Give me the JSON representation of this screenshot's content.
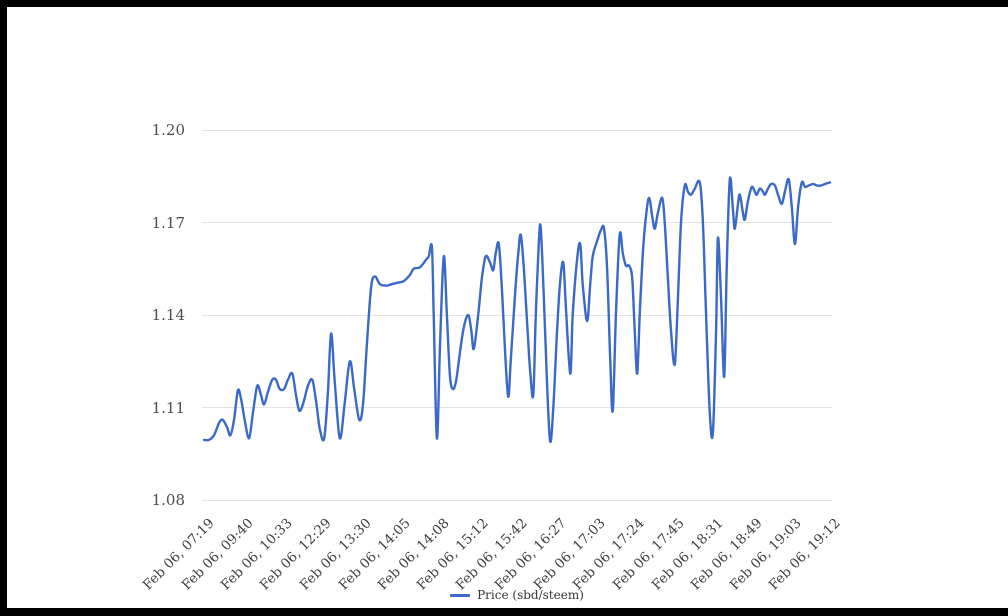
{
  "colors": {
    "line": "#3b69c5",
    "grid": "#e3e3e3",
    "y_axis_text": "#4d4d4d",
    "x_axis_text": "#3f3f3f",
    "frame": "#000000",
    "background": "#ffffff"
  },
  "legend": {
    "label": "Price (sbd/steem)"
  },
  "chart_data": {
    "type": "line",
    "title": "",
    "xlabel": "",
    "ylabel": "",
    "legend_position": "bottom",
    "grid": true,
    "y_axis": {
      "range": [
        1.08,
        1.2
      ],
      "tick_labels": [
        "1.20",
        "1.17",
        "1.14",
        "1.11",
        "1.08"
      ],
      "tick_values": [
        1.2,
        1.17,
        1.14,
        1.11,
        1.08
      ]
    },
    "x_axis": {
      "tick_labels": [
        "Feb 06, 07:19",
        "Feb 06, 09:40",
        "Feb 06, 10:33",
        "Feb 06, 12:29",
        "Feb 06, 13:30",
        "Feb 06, 14:05",
        "Feb 06, 14:08",
        "Feb 06, 15:12",
        "Feb 06, 15:42",
        "Feb 06, 16:27",
        "Feb 06, 17:03",
        "Feb 06, 17:24",
        "Feb 06, 17:45",
        "Feb 06, 18:31",
        "Feb 06, 18:49",
        "Feb 06, 19:03",
        "Feb 06, 19:12"
      ]
    },
    "series": [
      {
        "name": "Price (sbd/steem)",
        "color": "#3b69c5",
        "points": [
          [
            0.0,
            1.0995
          ],
          [
            0.008,
            1.0995
          ],
          [
            0.016,
            1.101
          ],
          [
            0.024,
            1.105
          ],
          [
            0.03,
            1.106
          ],
          [
            0.037,
            1.1035
          ],
          [
            0.042,
            1.101
          ],
          [
            0.048,
            1.106
          ],
          [
            0.054,
            1.1155
          ],
          [
            0.059,
            1.113
          ],
          [
            0.065,
            1.106
          ],
          [
            0.072,
            1.1
          ],
          [
            0.078,
            1.108
          ],
          [
            0.085,
            1.117
          ],
          [
            0.091,
            1.114
          ],
          [
            0.096,
            1.111
          ],
          [
            0.102,
            1.115
          ],
          [
            0.109,
            1.119
          ],
          [
            0.115,
            1.119
          ],
          [
            0.121,
            1.116
          ],
          [
            0.128,
            1.116
          ],
          [
            0.134,
            1.119
          ],
          [
            0.141,
            1.121
          ],
          [
            0.147,
            1.114
          ],
          [
            0.152,
            1.109
          ],
          [
            0.158,
            1.111
          ],
          [
            0.166,
            1.117
          ],
          [
            0.173,
            1.119
          ],
          [
            0.179,
            1.112
          ],
          [
            0.185,
            1.103
          ],
          [
            0.192,
            1.1
          ],
          [
            0.198,
            1.115
          ],
          [
            0.203,
            1.134
          ],
          [
            0.209,
            1.118
          ],
          [
            0.217,
            1.1
          ],
          [
            0.225,
            1.112
          ],
          [
            0.233,
            1.125
          ],
          [
            0.24,
            1.116
          ],
          [
            0.248,
            1.106
          ],
          [
            0.254,
            1.111
          ],
          [
            0.26,
            1.13
          ],
          [
            0.267,
            1.149
          ],
          [
            0.273,
            1.1525
          ],
          [
            0.281,
            1.15
          ],
          [
            0.291,
            1.1495
          ],
          [
            0.3,
            1.15
          ],
          [
            0.31,
            1.1505
          ],
          [
            0.319,
            1.151
          ],
          [
            0.329,
            1.153
          ],
          [
            0.335,
            1.155
          ],
          [
            0.345,
            1.1555
          ],
          [
            0.355,
            1.158
          ],
          [
            0.359,
            1.159
          ],
          [
            0.364,
            1.162
          ],
          [
            0.367,
            1.14
          ],
          [
            0.372,
            1.1
          ],
          [
            0.377,
            1.13
          ],
          [
            0.383,
            1.159
          ],
          [
            0.388,
            1.14
          ],
          [
            0.393,
            1.12
          ],
          [
            0.398,
            1.116
          ],
          [
            0.403,
            1.119
          ],
          [
            0.409,
            1.128
          ],
          [
            0.415,
            1.136
          ],
          [
            0.422,
            1.14
          ],
          [
            0.427,
            1.135
          ],
          [
            0.431,
            1.129
          ],
          [
            0.438,
            1.14
          ],
          [
            0.444,
            1.152
          ],
          [
            0.45,
            1.159
          ],
          [
            0.457,
            1.157
          ],
          [
            0.462,
            1.1545
          ],
          [
            0.466,
            1.16
          ],
          [
            0.471,
            1.163
          ],
          [
            0.476,
            1.148
          ],
          [
            0.481,
            1.128
          ],
          [
            0.486,
            1.1135
          ],
          [
            0.49,
            1.125
          ],
          [
            0.497,
            1.147
          ],
          [
            0.502,
            1.16
          ],
          [
            0.506,
            1.166
          ],
          [
            0.511,
            1.155
          ],
          [
            0.516,
            1.138
          ],
          [
            0.521,
            1.122
          ],
          [
            0.526,
            1.114
          ],
          [
            0.53,
            1.14
          ],
          [
            0.535,
            1.164
          ],
          [
            0.538,
            1.168
          ],
          [
            0.543,
            1.145
          ],
          [
            0.548,
            1.118
          ],
          [
            0.553,
            1.099
          ],
          [
            0.558,
            1.11
          ],
          [
            0.564,
            1.135
          ],
          [
            0.569,
            1.151
          ],
          [
            0.574,
            1.157
          ],
          [
            0.578,
            1.143
          ],
          [
            0.585,
            1.121
          ],
          [
            0.589,
            1.14
          ],
          [
            0.596,
            1.158
          ],
          [
            0.601,
            1.163
          ],
          [
            0.605,
            1.15
          ],
          [
            0.612,
            1.138
          ],
          [
            0.617,
            1.15
          ],
          [
            0.621,
            1.159
          ],
          [
            0.628,
            1.164
          ],
          [
            0.634,
            1.1675
          ],
          [
            0.639,
            1.168
          ],
          [
            0.644,
            1.155
          ],
          [
            0.649,
            1.125
          ],
          [
            0.653,
            1.109
          ],
          [
            0.658,
            1.14
          ],
          [
            0.664,
            1.166
          ],
          [
            0.669,
            1.16
          ],
          [
            0.674,
            1.156
          ],
          [
            0.679,
            1.156
          ],
          [
            0.684,
            1.152
          ],
          [
            0.688,
            1.135
          ],
          [
            0.692,
            1.121
          ],
          [
            0.696,
            1.14
          ],
          [
            0.701,
            1.16
          ],
          [
            0.706,
            1.172
          ],
          [
            0.711,
            1.178
          ],
          [
            0.716,
            1.172
          ],
          [
            0.72,
            1.168
          ],
          [
            0.725,
            1.173
          ],
          [
            0.732,
            1.178
          ],
          [
            0.736,
            1.17
          ],
          [
            0.741,
            1.152
          ],
          [
            0.746,
            1.135
          ],
          [
            0.752,
            1.124
          ],
          [
            0.757,
            1.145
          ],
          [
            0.762,
            1.17
          ],
          [
            0.768,
            1.182
          ],
          [
            0.773,
            1.18
          ],
          [
            0.778,
            1.179
          ],
          [
            0.784,
            1.181
          ],
          [
            0.792,
            1.183
          ],
          [
            0.797,
            1.17
          ],
          [
            0.802,
            1.14
          ],
          [
            0.808,
            1.108
          ],
          [
            0.813,
            1.102
          ],
          [
            0.818,
            1.135
          ],
          [
            0.821,
            1.165
          ],
          [
            0.826,
            1.145
          ],
          [
            0.831,
            1.12
          ],
          [
            0.835,
            1.155
          ],
          [
            0.84,
            1.184
          ],
          [
            0.845,
            1.174
          ],
          [
            0.848,
            1.168
          ],
          [
            0.853,
            1.176
          ],
          [
            0.856,
            1.179
          ],
          [
            0.861,
            1.173
          ],
          [
            0.864,
            1.171
          ],
          [
            0.869,
            1.177
          ],
          [
            0.875,
            1.1815
          ],
          [
            0.88,
            1.18
          ],
          [
            0.883,
            1.179
          ],
          [
            0.888,
            1.181
          ],
          [
            0.893,
            1.18
          ],
          [
            0.896,
            1.179
          ],
          [
            0.901,
            1.181
          ],
          [
            0.906,
            1.1825
          ],
          [
            0.912,
            1.182
          ],
          [
            0.917,
            1.179
          ],
          [
            0.923,
            1.176
          ],
          [
            0.928,
            1.18
          ],
          [
            0.934,
            1.184
          ],
          [
            0.939,
            1.175
          ],
          [
            0.944,
            1.163
          ],
          [
            0.949,
            1.175
          ],
          [
            0.955,
            1.183
          ],
          [
            0.96,
            1.1815
          ],
          [
            0.966,
            1.182
          ],
          [
            0.973,
            1.1825
          ],
          [
            0.979,
            1.182
          ],
          [
            0.986,
            1.182
          ],
          [
            0.992,
            1.1825
          ],
          [
            1.0,
            1.183
          ]
        ]
      }
    ]
  }
}
